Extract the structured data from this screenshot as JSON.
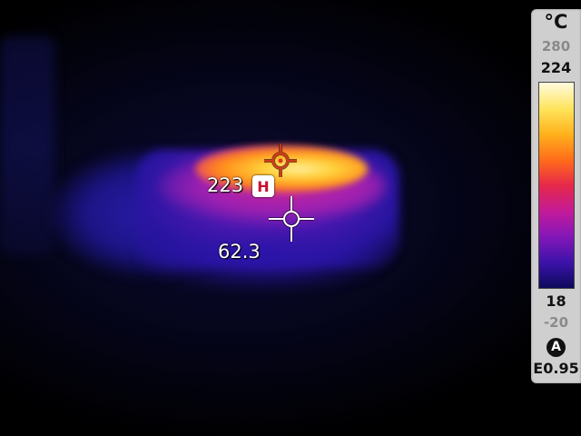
{
  "thermal_view": {
    "hot_spot": {
      "value": "223",
      "marker_label": "H",
      "marker_color": "#c8102e",
      "icon": "crosshair-hot-icon"
    },
    "center_spot": {
      "value": "62.3",
      "icon": "crosshair-center-icon"
    }
  },
  "scale": {
    "unit": "°C",
    "range_max": "280",
    "max": "224",
    "min": "18",
    "range_min": "-20",
    "auto_mode_label": "A",
    "emissivity": "E0.95",
    "palette": [
      "#fffbe0",
      "#ffe45a",
      "#ffb21c",
      "#ff6a1a",
      "#e6284a",
      "#c21a9a",
      "#8417b8",
      "#3a12a8",
      "#0d0a5a"
    ]
  }
}
